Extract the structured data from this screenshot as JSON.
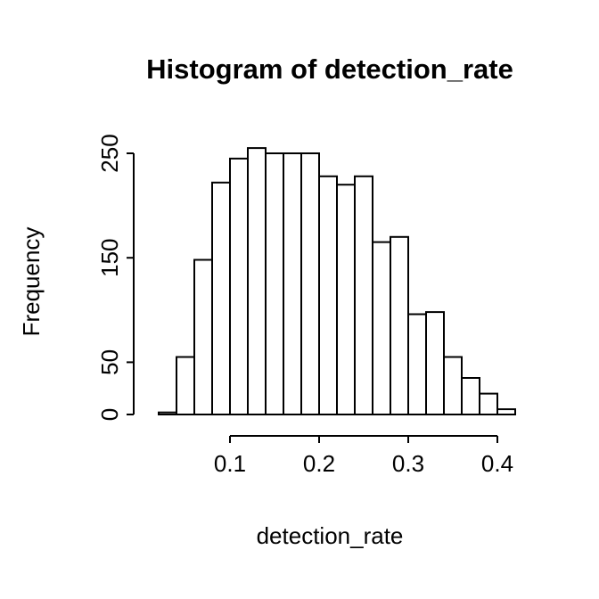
{
  "chart_data": {
    "type": "bar",
    "subtype": "histogram",
    "title": "Histogram of detection_rate",
    "xlabel": "detection_rate",
    "ylabel": "Frequency",
    "bin_start": 0.02,
    "bin_width": 0.02,
    "counts": [
      2,
      55,
      148,
      222,
      245,
      255,
      250,
      250,
      250,
      228,
      220,
      228,
      165,
      170,
      96,
      98,
      55,
      35,
      20,
      5
    ],
    "x_ticks": [
      0.1,
      0.2,
      0.3,
      0.4
    ],
    "y_ticks": [
      0,
      50,
      150,
      250
    ],
    "xlim": [
      0.02,
      0.42
    ],
    "ylim": [
      0,
      255
    ],
    "grid": false,
    "legend": "none",
    "bar_fill": "#ffffff",
    "bar_stroke": "#000000",
    "axis_color": "#000000",
    "background_color": "#ffffff"
  }
}
